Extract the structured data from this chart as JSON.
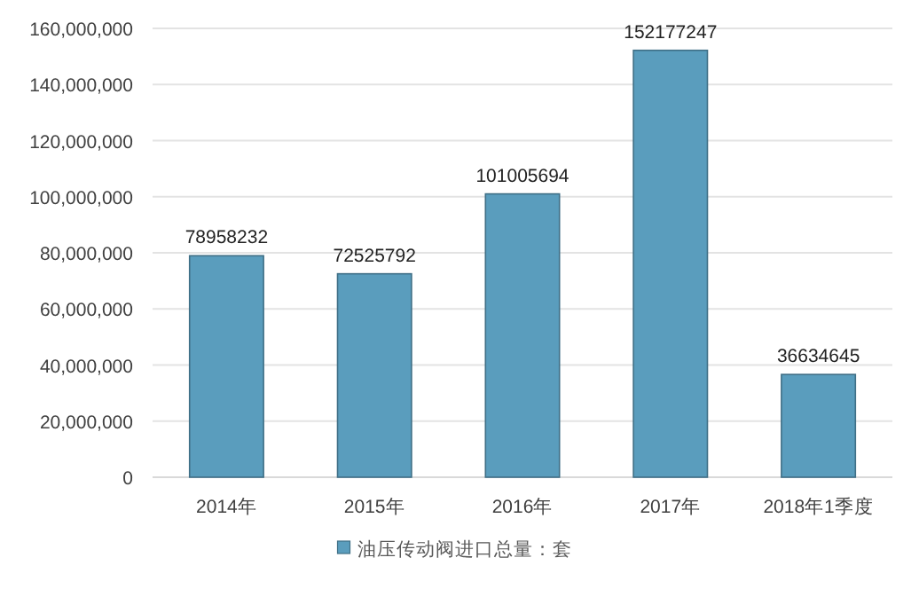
{
  "chart_data": {
    "type": "bar",
    "categories": [
      "2014年",
      "2015年",
      "2016年",
      "2017年",
      "2018年1季度"
    ],
    "series": [
      {
        "name": "油压传动阀进口总量：套",
        "color": "#5a9dbd",
        "values": [
          78958232,
          72525792,
          101005694,
          152177247,
          36634645
        ]
      }
    ],
    "ylim": [
      0,
      160000000
    ],
    "yticks": [
      0,
      {
        "value": 20000000,
        "label": "20,000,000"
      },
      {
        "value": 40000000,
        "label": "40,000,000"
      },
      {
        "value": 60000000,
        "label": "60,000,000"
      },
      {
        "value": 80000000,
        "label": "80,000,000"
      },
      {
        "value": 100000000,
        "label": "100,000,000"
      },
      {
        "value": 120000000,
        "label": "120,000,000"
      },
      {
        "value": 140000000,
        "label": "140,000,000"
      },
      {
        "value": 160000000,
        "label": "160,000,000"
      }
    ],
    "grid": "y",
    "legend": "bottom",
    "data_labels": true
  }
}
